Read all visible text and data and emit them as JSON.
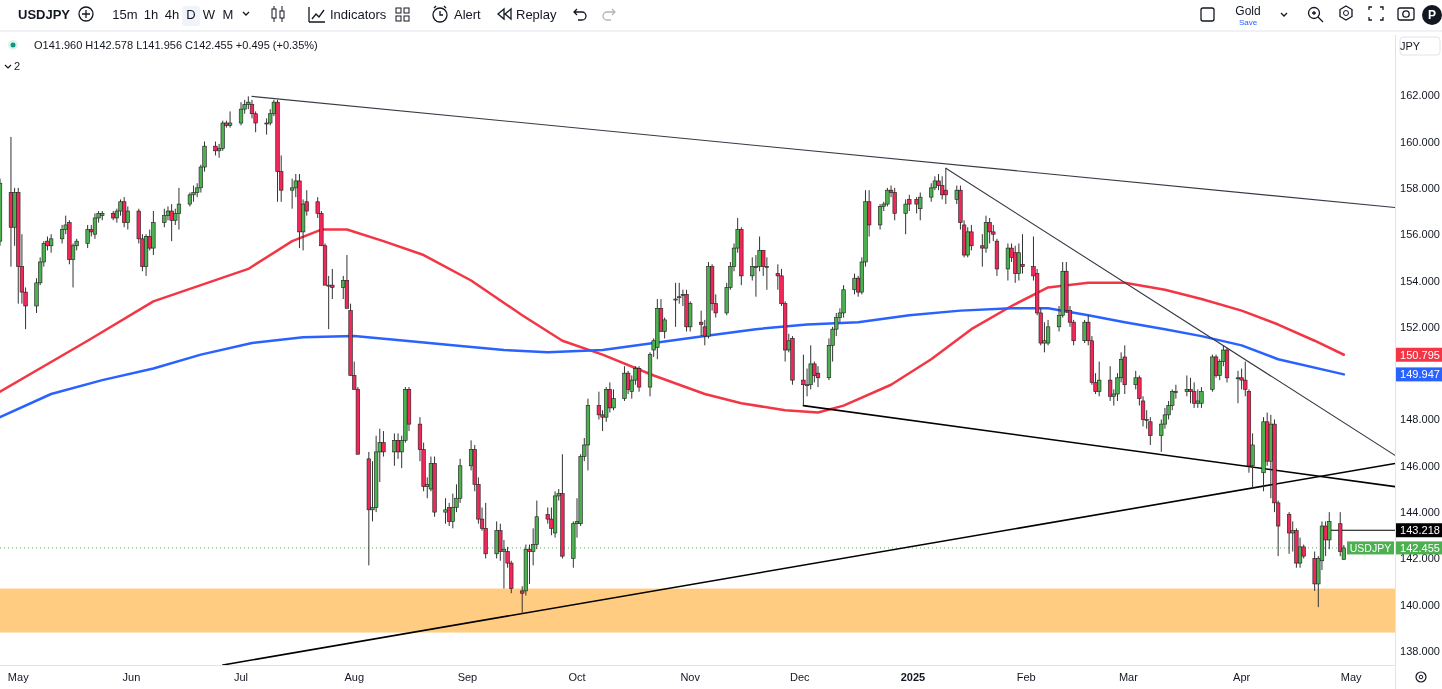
{
  "chart_data": {
    "type": "candlestick",
    "title": "USDJPY",
    "subtitle": "O141.960 H142.578 L141.956 C142.455 +0.495 (+0.35%)",
    "x": [
      "2024-04-26",
      "2024-04-29",
      "2024-04-30",
      "2024-05-01",
      "2024-05-02",
      "2024-05-03",
      "2024-05-06",
      "2024-05-07",
      "2024-05-08",
      "2024-05-09",
      "2024-05-10",
      "2024-05-13",
      "2024-05-14",
      "2024-05-15",
      "2024-05-16",
      "2024-05-17",
      "2024-05-20",
      "2024-05-21",
      "2024-05-22",
      "2024-05-23",
      "2024-05-24",
      "2024-05-27",
      "2024-05-28",
      "2024-05-29",
      "2024-05-30",
      "2024-05-31",
      "2024-06-03",
      "2024-06-04",
      "2024-06-05",
      "2024-06-06",
      "2024-06-07",
      "2024-06-10",
      "2024-06-11",
      "2024-06-12",
      "2024-06-13",
      "2024-06-14",
      "2024-06-17",
      "2024-06-18",
      "2024-06-19",
      "2024-06-20",
      "2024-06-21",
      "2024-06-24",
      "2024-06-25",
      "2024-06-26",
      "2024-06-27",
      "2024-06-28",
      "2024-07-01",
      "2024-07-02",
      "2024-07-03",
      "2024-07-04",
      "2024-07-05",
      "2024-07-08",
      "2024-07-09",
      "2024-07-10",
      "2024-07-11",
      "2024-07-12",
      "2024-07-15",
      "2024-07-16",
      "2024-07-17",
      "2024-07-18",
      "2024-07-19",
      "2024-07-22",
      "2024-07-23",
      "2024-07-24",
      "2024-07-25",
      "2024-07-26",
      "2024-07-29",
      "2024-07-30",
      "2024-07-31",
      "2024-08-01",
      "2024-08-02",
      "2024-08-05",
      "2024-08-06",
      "2024-08-07",
      "2024-08-08",
      "2024-08-09",
      "2024-08-12",
      "2024-08-13",
      "2024-08-14",
      "2024-08-15",
      "2024-08-16",
      "2024-08-19",
      "2024-08-20",
      "2024-08-21",
      "2024-08-22",
      "2024-08-23",
      "2024-08-26",
      "2024-08-27",
      "2024-08-28",
      "2024-08-29",
      "2024-08-30",
      "2024-09-02",
      "2024-09-03",
      "2024-09-04",
      "2024-09-05",
      "2024-09-06",
      "2024-09-09",
      "2024-09-10",
      "2024-09-11",
      "2024-09-12",
      "2024-09-13",
      "2024-09-16",
      "2024-09-17",
      "2024-09-18",
      "2024-09-19",
      "2024-09-20",
      "2024-09-23",
      "2024-09-24",
      "2024-09-25",
      "2024-09-26",
      "2024-09-27",
      "2024-09-30",
      "2024-10-01",
      "2024-10-02",
      "2024-10-03",
      "2024-10-04",
      "2024-10-07",
      "2024-10-08",
      "2024-10-09",
      "2024-10-10",
      "2024-10-11",
      "2024-10-14",
      "2024-10-15",
      "2024-10-16",
      "2024-10-17",
      "2024-10-18",
      "2024-10-21",
      "2024-10-22",
      "2024-10-23",
      "2024-10-24",
      "2024-10-25",
      "2024-10-28",
      "2024-10-29",
      "2024-10-30",
      "2024-10-31",
      "2024-11-01",
      "2024-11-04",
      "2024-11-05",
      "2024-11-06",
      "2024-11-07",
      "2024-11-08",
      "2024-11-11",
      "2024-11-12",
      "2024-11-13",
      "2024-11-14",
      "2024-11-15",
      "2024-11-18",
      "2024-11-19",
      "2024-11-20",
      "2024-11-21",
      "2024-11-22",
      "2024-11-25",
      "2024-11-26",
      "2024-11-27",
      "2024-11-28",
      "2024-11-29",
      "2024-12-02",
      "2024-12-03",
      "2024-12-04",
      "2024-12-05",
      "2024-12-06",
      "2024-12-09",
      "2024-12-10",
      "2024-12-11",
      "2024-12-12",
      "2024-12-13",
      "2024-12-16",
      "2024-12-17",
      "2024-12-18",
      "2024-12-19",
      "2024-12-20",
      "2024-12-23",
      "2024-12-24",
      "2024-12-25",
      "2024-12-26",
      "2024-12-27",
      "2024-12-30",
      "2024-12-31",
      "2025-01-02",
      "2025-01-03",
      "2025-01-06",
      "2025-01-07",
      "2025-01-08",
      "2025-01-09",
      "2025-01-10",
      "2025-01-13",
      "2025-01-14",
      "2025-01-15",
      "2025-01-16",
      "2025-01-17",
      "2025-01-20",
      "2025-01-21",
      "2025-01-22",
      "2025-01-23",
      "2025-01-24",
      "2025-01-27",
      "2025-01-28",
      "2025-01-29",
      "2025-01-30",
      "2025-01-31",
      "2025-02-03",
      "2025-02-04",
      "2025-02-05",
      "2025-02-06",
      "2025-02-07",
      "2025-02-10",
      "2025-02-11",
      "2025-02-12",
      "2025-02-13",
      "2025-02-14",
      "2025-02-17",
      "2025-02-18",
      "2025-02-19",
      "2025-02-20",
      "2025-02-21",
      "2025-02-24",
      "2025-02-25",
      "2025-02-26",
      "2025-02-27",
      "2025-02-28",
      "2025-03-03",
      "2025-03-04",
      "2025-03-05",
      "2025-03-06",
      "2025-03-07",
      "2025-03-10",
      "2025-03-11",
      "2025-03-12",
      "2025-03-13",
      "2025-03-14",
      "2025-03-17",
      "2025-03-18",
      "2025-03-19",
      "2025-03-20",
      "2025-03-21",
      "2025-03-24",
      "2025-03-25",
      "2025-03-26",
      "2025-03-27",
      "2025-03-28",
      "2025-03-31",
      "2025-04-01",
      "2025-04-02",
      "2025-04-03",
      "2025-04-04",
      "2025-04-07",
      "2025-04-08",
      "2025-04-09",
      "2025-04-10",
      "2025-04-11",
      "2025-04-14",
      "2025-04-15",
      "2025-04-16",
      "2025-04-17",
      "2025-04-18",
      "2025-04-21",
      "2025-04-22",
      "2025-04-23",
      "2025-04-24",
      "2025-04-25",
      "2025-04-28",
      "2025-04-29"
    ],
    "ohlc": [
      [
        155.7,
        158.4,
        155.5,
        158.2
      ],
      [
        157.8,
        160.2,
        154.6,
        156.3
      ],
      [
        156.3,
        158.0,
        155.5,
        157.8
      ],
      [
        157.8,
        158.0,
        153.0,
        154.6
      ],
      [
        154.6,
        156.0,
        153.0,
        153.5
      ],
      [
        153.5,
        153.7,
        151.9,
        152.9
      ],
      [
        152.9,
        154.1,
        152.6,
        153.9
      ],
      [
        153.9,
        155.0,
        153.8,
        154.8
      ],
      [
        154.8,
        155.7,
        154.6,
        155.6
      ],
      [
        155.7,
        155.9,
        155.3,
        155.5
      ],
      [
        155.5,
        156.0,
        155.2,
        155.8
      ],
      [
        155.8,
        156.4,
        155.6,
        156.2
      ],
      [
        156.2,
        156.8,
        156.0,
        156.4
      ],
      [
        156.5,
        156.6,
        154.7,
        154.9
      ],
      [
        154.9,
        155.6,
        153.7,
        155.5
      ],
      [
        155.5,
        155.8,
        155.3,
        155.7
      ],
      [
        155.6,
        156.4,
        155.4,
        156.2
      ],
      [
        156.2,
        156.4,
        155.9,
        156.1
      ],
      [
        156.0,
        156.9,
        155.8,
        156.7
      ],
      [
        156.7,
        157.0,
        156.5,
        156.9
      ],
      [
        156.8,
        157.0,
        156.6,
        156.9
      ],
      [
        156.9,
        157.0,
        156.6,
        156.7
      ],
      [
        156.7,
        157.1,
        156.5,
        157.0
      ],
      [
        157.0,
        157.5,
        156.8,
        157.4
      ],
      [
        157.4,
        157.6,
        156.3,
        156.5
      ],
      [
        156.5,
        157.2,
        156.2,
        157.0
      ],
      [
        157.0,
        157.1,
        155.6,
        155.8
      ],
      [
        155.8,
        156.0,
        154.4,
        154.6
      ],
      [
        154.6,
        156.0,
        154.2,
        155.9
      ],
      [
        155.9,
        156.2,
        155.3,
        155.4
      ],
      [
        155.4,
        157.0,
        155.1,
        156.5
      ],
      [
        156.5,
        157.1,
        156.3,
        156.8
      ],
      [
        156.8,
        157.2,
        156.6,
        157.0
      ],
      [
        157.0,
        157.3,
        155.7,
        156.6
      ],
      [
        156.6,
        157.1,
        156.4,
        156.9
      ],
      [
        156.9,
        158.0,
        156.2,
        157.3
      ],
      [
        157.3,
        157.8,
        157.2,
        157.7
      ],
      [
        157.7,
        158.1,
        157.4,
        157.8
      ],
      [
        157.8,
        158.2,
        157.6,
        158.0
      ],
      [
        158.0,
        159.0,
        157.8,
        158.9
      ],
      [
        158.9,
        160.0,
        158.7,
        159.8
      ],
      [
        159.8,
        160.0,
        159.4,
        159.6
      ],
      [
        159.6,
        159.9,
        159.3,
        159.7
      ],
      [
        159.7,
        160.9,
        159.6,
        160.8
      ],
      [
        160.8,
        160.9,
        160.6,
        160.7
      ],
      [
        160.7,
        161.3,
        160.6,
        160.8
      ],
      [
        160.8,
        161.7,
        160.7,
        161.4
      ],
      [
        161.4,
        161.8,
        161.2,
        161.6
      ],
      [
        161.6,
        161.95,
        161.4,
        161.7
      ],
      [
        161.6,
        161.8,
        161.0,
        161.2
      ],
      [
        161.2,
        161.3,
        160.4,
        160.8
      ],
      [
        160.8,
        161.0,
        160.3,
        160.8
      ],
      [
        160.8,
        161.4,
        160.7,
        161.2
      ],
      [
        161.2,
        161.8,
        161.1,
        161.7
      ],
      [
        161.7,
        161.8,
        157.4,
        158.7
      ],
      [
        158.7,
        159.4,
        157.4,
        157.9
      ],
      [
        157.9,
        158.4,
        157.1,
        158.0
      ],
      [
        158.0,
        158.6,
        157.6,
        158.3
      ],
      [
        158.3,
        158.6,
        155.4,
        156.1
      ],
      [
        156.1,
        157.5,
        155.3,
        157.3
      ],
      [
        157.4,
        157.9,
        156.8,
        157.0
      ],
      [
        157.4,
        157.6,
        156.7,
        156.9
      ],
      [
        156.9,
        157.0,
        155.5,
        155.5
      ],
      [
        155.5,
        155.6,
        153.8,
        153.8
      ],
      [
        153.8,
        154.2,
        151.9,
        153.8
      ],
      [
        153.8,
        154.5,
        153.2,
        153.7
      ],
      [
        153.7,
        154.2,
        153.2,
        154.0
      ],
      [
        154.0,
        155.1,
        152.8,
        152.8
      ],
      [
        152.7,
        153.0,
        149.9,
        149.9
      ],
      [
        149.9,
        150.5,
        149.3,
        149.3
      ],
      [
        149.3,
        149.4,
        146.5,
        146.5
      ],
      [
        146.3,
        146.6,
        141.7,
        144.1
      ],
      [
        144.1,
        146.2,
        143.6,
        144.2
      ],
      [
        144.2,
        147.3,
        144.0,
        146.6
      ],
      [
        146.6,
        147.6,
        145.3,
        147.0
      ],
      [
        147.0,
        147.5,
        146.4,
        146.6
      ],
      [
        146.6,
        147.4,
        146.0,
        147.1
      ],
      [
        147.1,
        147.4,
        146.3,
        146.6
      ],
      [
        146.6,
        147.3,
        145.9,
        147.1
      ],
      [
        147.1,
        149.4,
        147.0,
        149.3
      ],
      [
        149.3,
        149.4,
        147.5,
        147.8
      ],
      [
        147.8,
        148.1,
        146.2,
        146.7
      ],
      [
        146.7,
        147.0,
        144.9,
        145.1
      ],
      [
        145.1,
        145.5,
        144.6,
        145.2
      ],
      [
        145.0,
        146.4,
        144.9,
        146.1
      ],
      [
        146.1,
        146.4,
        143.8,
        144.0
      ],
      [
        144.0,
        144.6,
        143.5,
        144.1
      ],
      [
        144.2,
        144.4,
        143.4,
        143.6
      ],
      [
        143.6,
        144.8,
        143.3,
        144.2
      ],
      [
        144.2,
        145.2,
        144.0,
        144.6
      ],
      [
        144.6,
        146.3,
        144.4,
        146.0
      ],
      [
        146.0,
        147.1,
        145.8,
        146.7
      ],
      [
        146.7,
        146.9,
        144.9,
        145.2
      ],
      [
        145.2,
        145.5,
        143.5,
        143.7
      ],
      [
        143.7,
        144.2,
        143.2,
        143.3
      ],
      [
        143.3,
        144.4,
        142.0,
        142.2
      ],
      [
        142.2,
        143.6,
        142.0,
        143.2
      ],
      [
        143.2,
        143.5,
        141.9,
        142.3
      ],
      [
        142.3,
        142.8,
        140.7,
        142.4
      ],
      [
        142.3,
        142.5,
        141.6,
        141.8
      ],
      [
        141.8,
        141.9,
        140.5,
        140.7
      ],
      [
        140.6,
        140.8,
        139.6,
        140.5
      ],
      [
        140.6,
        142.6,
        140.4,
        142.4
      ],
      [
        142.4,
        142.6,
        140.9,
        142.3
      ],
      [
        142.3,
        143.3,
        141.7,
        142.6
      ],
      [
        142.6,
        144.5,
        142.4,
        143.8
      ],
      [
        143.9,
        144.2,
        143.5,
        143.7
      ],
      [
        143.7,
        144.2,
        143.0,
        143.3
      ],
      [
        143.1,
        144.9,
        142.9,
        144.7
      ],
      [
        144.7,
        145.0,
        144.5,
        144.8
      ],
      [
        144.8,
        146.5,
        142.0,
        142.1
      ],
      [
        142.0,
        143.6,
        141.6,
        143.5
      ],
      [
        143.5,
        144.6,
        142.9,
        143.6
      ],
      [
        143.5,
        146.5,
        143.4,
        146.4
      ],
      [
        146.4,
        147.2,
        146.2,
        146.9
      ],
      [
        146.9,
        148.9,
        145.8,
        148.6
      ],
      [
        148.6,
        149.2,
        148.0,
        148.2
      ],
      [
        148.2,
        148.4,
        147.5,
        148.1
      ],
      [
        148.1,
        149.4,
        147.9,
        149.3
      ],
      [
        149.3,
        149.6,
        148.3,
        148.5
      ],
      [
        148.5,
        149.3,
        148.4,
        148.9
      ],
      [
        148.9,
        150.3,
        148.8,
        150.0
      ],
      [
        150.0,
        150.1,
        149.1,
        149.3
      ],
      [
        149.2,
        149.9,
        148.9,
        149.7
      ],
      [
        149.7,
        150.3,
        149.5,
        150.2
      ],
      [
        150.2,
        150.3,
        149.2,
        149.4
      ],
      [
        149.4,
        150.9,
        149.0,
        150.8
      ],
      [
        151.0,
        151.5,
        150.7,
        151.4
      ],
      [
        151.1,
        153.2,
        150.6,
        152.8
      ],
      [
        152.8,
        153.2,
        151.8,
        151.8
      ],
      [
        151.8,
        152.4,
        151.5,
        152.3
      ],
      [
        153.2,
        153.9,
        152.0,
        153.2
      ],
      [
        153.3,
        153.9,
        153.0,
        153.3
      ],
      [
        153.4,
        153.6,
        152.9,
        153.4
      ],
      [
        153.4,
        153.6,
        151.8,
        152.0
      ],
      [
        152.0,
        153.1,
        151.8,
        153.0
      ],
      [
        152.2,
        152.7,
        151.6,
        152.1
      ],
      [
        152.0,
        152.3,
        151.2,
        151.6
      ],
      [
        151.6,
        154.8,
        151.5,
        154.6
      ],
      [
        154.6,
        154.7,
        152.7,
        153.0
      ],
      [
        153.0,
        153.4,
        152.4,
        152.6
      ],
      [
        152.6,
        153.9,
        152.5,
        153.7
      ],
      [
        153.7,
        154.8,
        153.6,
        154.6
      ],
      [
        154.6,
        155.6,
        154.4,
        155.4
      ],
      [
        155.4,
        156.7,
        155.2,
        156.2
      ],
      [
        156.2,
        156.3,
        153.8,
        154.2
      ],
      [
        154.2,
        155.0,
        154.0,
        154.6
      ],
      [
        154.6,
        155.1,
        153.3,
        154.6
      ],
      [
        154.6,
        155.9,
        154.4,
        155.3
      ],
      [
        155.3,
        155.3,
        154.2,
        154.6
      ],
      [
        154.6,
        155.0,
        153.6,
        154.6
      ],
      [
        154.3,
        154.7,
        153.6,
        154.2
      ],
      [
        154.2,
        154.5,
        152.9,
        153.0
      ],
      [
        153.0,
        153.1,
        150.5,
        151.0
      ],
      [
        151.0,
        151.7,
        150.9,
        151.4
      ],
      [
        151.5,
        151.6,
        149.5,
        149.7
      ],
      [
        149.7,
        150.8,
        148.6,
        149.5
      ],
      [
        149.5,
        150.2,
        149.0,
        149.5
      ],
      [
        149.5,
        151.2,
        149.3,
        150.4
      ],
      [
        150.4,
        150.5,
        149.6,
        149.9
      ],
      [
        150.0,
        150.3,
        149.4,
        149.8
      ],
      [
        149.8,
        151.5,
        149.7,
        151.2
      ],
      [
        151.2,
        152.0,
        150.5,
        151.9
      ],
      [
        151.9,
        152.6,
        151.6,
        152.4
      ],
      [
        152.4,
        152.8,
        152.2,
        152.6
      ],
      [
        152.6,
        153.8,
        152.4,
        153.6
      ],
      [
        153.6,
        154.3,
        153.4,
        154.1
      ],
      [
        154.1,
        154.2,
        153.3,
        153.5
      ],
      [
        153.5,
        155.0,
        153.4,
        154.8
      ],
      [
        154.8,
        157.9,
        154.6,
        157.4
      ],
      [
        157.4,
        157.9,
        155.9,
        156.4
      ],
      [
        156.4,
        157.3,
        156.2,
        157.2
      ],
      [
        157.2,
        157.4,
        157.0,
        157.3
      ],
      [
        157.3,
        158.0,
        157.2,
        157.9
      ],
      [
        157.9,
        158.1,
        157.6,
        157.8
      ],
      [
        157.8,
        158.0,
        156.6,
        156.9
      ],
      [
        156.9,
        157.5,
        156.0,
        157.3
      ],
      [
        157.5,
        157.7,
        157.0,
        157.3
      ],
      [
        157.5,
        157.6,
        156.9,
        157.3
      ],
      [
        157.1,
        157.8,
        156.6,
        157.6
      ],
      [
        157.6,
        158.2,
        157.4,
        158.0
      ],
      [
        158.0,
        158.5,
        157.9,
        158.3
      ],
      [
        158.3,
        158.6,
        157.9,
        158.1
      ],
      [
        158.1,
        158.5,
        157.5,
        157.7
      ],
      [
        157.9,
        158.85,
        157.3,
        157.7
      ],
      [
        157.5,
        158.1,
        157.3,
        157.9
      ],
      [
        157.9,
        158.1,
        156.2,
        156.5
      ],
      [
        156.4,
        156.6,
        155.0,
        155.1
      ],
      [
        155.1,
        156.3,
        155.0,
        156.1
      ],
      [
        156.1,
        156.4,
        155.3,
        155.5
      ],
      [
        155.5,
        156.0,
        154.6,
        155.4
      ],
      [
        155.4,
        156.8,
        155.2,
        156.5
      ],
      [
        156.5,
        156.7,
        155.6,
        156.1
      ],
      [
        156.1,
        156.4,
        155.7,
        156.0
      ],
      [
        155.7,
        155.8,
        154.2,
        154.5
      ],
      [
        154.5,
        155.6,
        154.0,
        155.4
      ],
      [
        155.4,
        155.6,
        154.8,
        155.0
      ],
      [
        155.2,
        155.5,
        153.9,
        154.3
      ],
      [
        154.3,
        155.6,
        154.0,
        155.2
      ],
      [
        154.7,
        156.0,
        154.3,
        154.6
      ],
      [
        154.6,
        155.9,
        154.0,
        154.2
      ],
      [
        154.3,
        154.5,
        152.5,
        152.6
      ],
      [
        152.6,
        152.8,
        151.2,
        151.3
      ],
      [
        151.3,
        152.2,
        150.9,
        151.4
      ],
      [
        151.3,
        152.3,
        151.2,
        152.0
      ],
      [
        152.0,
        152.9,
        151.8,
        152.5
      ],
      [
        152.5,
        154.8,
        152.4,
        154.4
      ],
      [
        154.4,
        154.8,
        152.6,
        152.7
      ],
      [
        152.7,
        152.9,
        152.0,
        152.2
      ],
      [
        152.2,
        152.3,
        151.2,
        151.4
      ],
      [
        151.4,
        152.3,
        151.3,
        152.2
      ],
      [
        152.2,
        152.5,
        151.2,
        151.4
      ],
      [
        151.4,
        151.6,
        149.5,
        149.6
      ],
      [
        149.6,
        150.0,
        149.1,
        149.2
      ],
      [
        149.2,
        150.5,
        149.0,
        149.7
      ],
      [
        149.7,
        150.3,
        148.8,
        149.0
      ],
      [
        149.0,
        149.3,
        148.6,
        149.1
      ],
      [
        149.1,
        150.0,
        148.8,
        149.8
      ],
      [
        149.8,
        150.9,
        149.6,
        150.6
      ],
      [
        150.7,
        151.2,
        149.1,
        149.5
      ],
      [
        149.5,
        150.1,
        149.3,
        149.8
      ],
      [
        149.8,
        149.9,
        148.6,
        148.9
      ],
      [
        148.8,
        149.0,
        147.7,
        148.0
      ],
      [
        148.0,
        148.4,
        147.6,
        148.0
      ],
      [
        147.9,
        148.1,
        146.9,
        147.3
      ],
      [
        147.3,
        148.0,
        146.6,
        147.8
      ],
      [
        147.8,
        148.5,
        147.6,
        148.2
      ],
      [
        148.2,
        148.8,
        148.0,
        148.6
      ],
      [
        148.6,
        149.3,
        148.4,
        149.2
      ],
      [
        149.2,
        149.5,
        148.9,
        149.2
      ],
      [
        149.2,
        149.9,
        149.0,
        149.3
      ],
      [
        149.3,
        149.8,
        148.7,
        149.2
      ],
      [
        149.2,
        149.6,
        148.5,
        148.7
      ],
      [
        148.7,
        149.3,
        148.5,
        148.8
      ],
      [
        148.7,
        149.4,
        148.5,
        149.2
      ],
      [
        149.3,
        150.8,
        149.2,
        150.7
      ],
      [
        150.7,
        150.8,
        149.8,
        149.9
      ],
      [
        149.9,
        150.6,
        149.7,
        150.5
      ],
      [
        150.5,
        151.2,
        150.3,
        151.0
      ],
      [
        151.0,
        151.1,
        149.6,
        149.8
      ],
      [
        149.8,
        150.1,
        148.7,
        149.8
      ],
      [
        149.8,
        150.2,
        149.3,
        149.7
      ],
      [
        149.7,
        150.5,
        149.0,
        149.3
      ],
      [
        149.2,
        149.3,
        145.7,
        146.0
      ],
      [
        146.0,
        147.4,
        145.0,
        146.9
      ],
      [
        145.7,
        148.1,
        144.9,
        147.9
      ],
      [
        147.9,
        148.3,
        146.0,
        146.2
      ],
      [
        146.2,
        148.2,
        144.6,
        147.8
      ],
      [
        147.8,
        148.0,
        144.0,
        144.4
      ],
      [
        144.4,
        144.5,
        142.1,
        143.4
      ],
      [
        143.9,
        144.0,
        142.2,
        143.1
      ],
      [
        143.1,
        143.6,
        142.3,
        143.2
      ],
      [
        143.2,
        143.3,
        141.6,
        141.8
      ],
      [
        141.8,
        142.9,
        141.6,
        142.5
      ],
      [
        142.5,
        142.6,
        142.0,
        142.1
      ],
      [
        142.0,
        142.3,
        140.6,
        140.9
      ],
      [
        140.9,
        142.1,
        139.9,
        142.0
      ],
      [
        141.9,
        143.6,
        141.5,
        143.4
      ],
      [
        143.4,
        143.6,
        142.1,
        142.8
      ],
      [
        142.8,
        144.0,
        142.4,
        143.6
      ],
      [
        143.5,
        144.0,
        142.1,
        142.3
      ],
      [
        141.96,
        142.578,
        141.956,
        142.455
      ]
    ],
    "series": [
      {
        "type": "line",
        "color": "#f23645",
        "x": [
          "2024-04-26",
          "2024-05-20",
          "2024-06-07",
          "2024-07-03",
          "2024-07-15",
          "2024-07-23",
          "2024-07-30",
          "2024-08-09",
          "2024-08-20",
          "2024-09-02",
          "2024-09-16",
          "2024-09-27",
          "2024-10-08",
          "2024-10-22",
          "2024-11-05",
          "2024-11-15",
          "2024-11-27",
          "2024-12-06",
          "2024-12-13",
          "2024-12-26",
          "2025-01-06",
          "2025-01-17",
          "2025-01-28",
          "2025-02-07",
          "2025-02-18",
          "2025-02-28",
          "2025-03-11",
          "2025-03-21",
          "2025-04-01",
          "2025-04-11",
          "2025-04-21",
          "2025-04-29"
        ],
        "values": [
          149.2,
          151.4,
          153.1,
          154.5,
          155.7,
          156.2,
          156.2,
          155.7,
          155.1,
          154.0,
          152.5,
          151.4,
          150.8,
          149.9,
          149.1,
          148.7,
          148.4,
          148.3,
          148.6,
          149.5,
          150.6,
          151.9,
          152.9,
          153.7,
          153.9,
          153.9,
          153.6,
          153.2,
          152.7,
          152.1,
          151.4,
          150.795
        ]
      },
      {
        "type": "line",
        "color": "#2962ff",
        "x": [
          "2024-04-26",
          "2024-05-10",
          "2024-05-24",
          "2024-06-07",
          "2024-06-20",
          "2024-07-04",
          "2024-07-18",
          "2024-08-01",
          "2024-08-15",
          "2024-08-28",
          "2024-09-11",
          "2024-09-23",
          "2024-10-08",
          "2024-10-22",
          "2024-11-05",
          "2024-11-19",
          "2024-12-03",
          "2024-12-17",
          "2024-12-31",
          "2025-01-14",
          "2025-01-28",
          "2025-02-07",
          "2025-02-18",
          "2025-02-28",
          "2025-03-11",
          "2025-03-21",
          "2025-04-01",
          "2025-04-11",
          "2025-04-29"
        ],
        "values": [
          148.1,
          149.1,
          149.7,
          150.2,
          150.8,
          151.3,
          151.55,
          151.6,
          151.4,
          151.2,
          151.0,
          150.9,
          151.0,
          151.3,
          151.6,
          151.9,
          152.1,
          152.2,
          152.5,
          152.7,
          152.8,
          152.8,
          152.5,
          152.2,
          151.9,
          151.6,
          151.2,
          150.6,
          149.947
        ]
      },
      {
        "type": "line",
        "color": "#363a45",
        "x": [
          "2024-07-04",
          "2025-05-13"
        ],
        "values": [
          161.95,
          157.15
        ]
      },
      {
        "type": "line",
        "color": "#363a45",
        "x": [
          "2025-01-10",
          "2025-05-13"
        ],
        "values": [
          158.85,
          146.45
        ]
      },
      {
        "type": "line",
        "color": "#000000",
        "x": [
          "2024-12-02",
          "2025-05-13"
        ],
        "values": [
          148.6,
          145.1
        ]
      },
      {
        "type": "line",
        "color": "#000000",
        "x": [
          "2024-06-26",
          "2025-05-13"
        ],
        "values": [
          137.4,
          146.1
        ]
      },
      {
        "type": "line",
        "color": "#000000",
        "x": [
          "2025-04-24",
          "2025-05-13"
        ],
        "values": [
          143.218,
          143.218
        ]
      }
    ],
    "bands": [
      {
        "axis": "y",
        "from": 138.8,
        "to": 140.7,
        "color": "#ffc774"
      }
    ],
    "ref_lines": [
      {
        "axis": "y",
        "value": 142.455,
        "label": "142.455",
        "color": "#4caf50",
        "line_style": "dotted"
      }
    ],
    "annotations": [
      "15m",
      "1h",
      "4h",
      "D",
      "W",
      "M",
      "Indicators",
      "Alert",
      "Replay",
      "Gold",
      "Save",
      "P",
      "2",
      "JPY",
      "USDJPY",
      "150.795",
      "149.947",
      "143.218"
    ],
    "xlim": [
      "2024-04-26",
      "2025-05-13"
    ],
    "xticks": [
      {
        "value": "2024-05-01",
        "label": "May"
      },
      {
        "value": "2024-06-01",
        "label": "Jun"
      },
      {
        "value": "2024-07-01",
        "label": "Jul"
      },
      {
        "value": "2024-08-01",
        "label": "Aug"
      },
      {
        "value": "2024-09-01",
        "label": "Sep"
      },
      {
        "value": "2024-10-01",
        "label": "Oct"
      },
      {
        "value": "2024-11-01",
        "label": "Nov"
      },
      {
        "value": "2024-12-01",
        "label": "Dec"
      },
      {
        "value": "2025-01-01",
        "label": "2025"
      },
      {
        "value": "2025-02-01",
        "label": "Feb"
      },
      {
        "value": "2025-03-01",
        "label": "Mar"
      },
      {
        "value": "2025-04-01",
        "label": "Apr"
      },
      {
        "value": "2025-05-01",
        "label": "May"
      }
    ],
    "ylim": [
      137.4,
      164.6
    ],
    "yticks": [
      {
        "value": 138,
        "label": "138.000"
      },
      {
        "value": 140,
        "label": "140.000"
      },
      {
        "value": 142,
        "label": "142.000"
      },
      {
        "value": 144,
        "label": "144.000"
      },
      {
        "value": 146,
        "label": "146.000"
      },
      {
        "value": 148,
        "label": "148.000"
      },
      {
        "value": 152,
        "label": "152.000"
      },
      {
        "value": 154,
        "label": "154.000"
      },
      {
        "value": 156,
        "label": "156.000"
      },
      {
        "value": 158,
        "label": "158.000"
      },
      {
        "value": 160,
        "label": "160.000"
      },
      {
        "value": 162,
        "label": "162.000"
      }
    ],
    "line_style": "solid"
  }
}
